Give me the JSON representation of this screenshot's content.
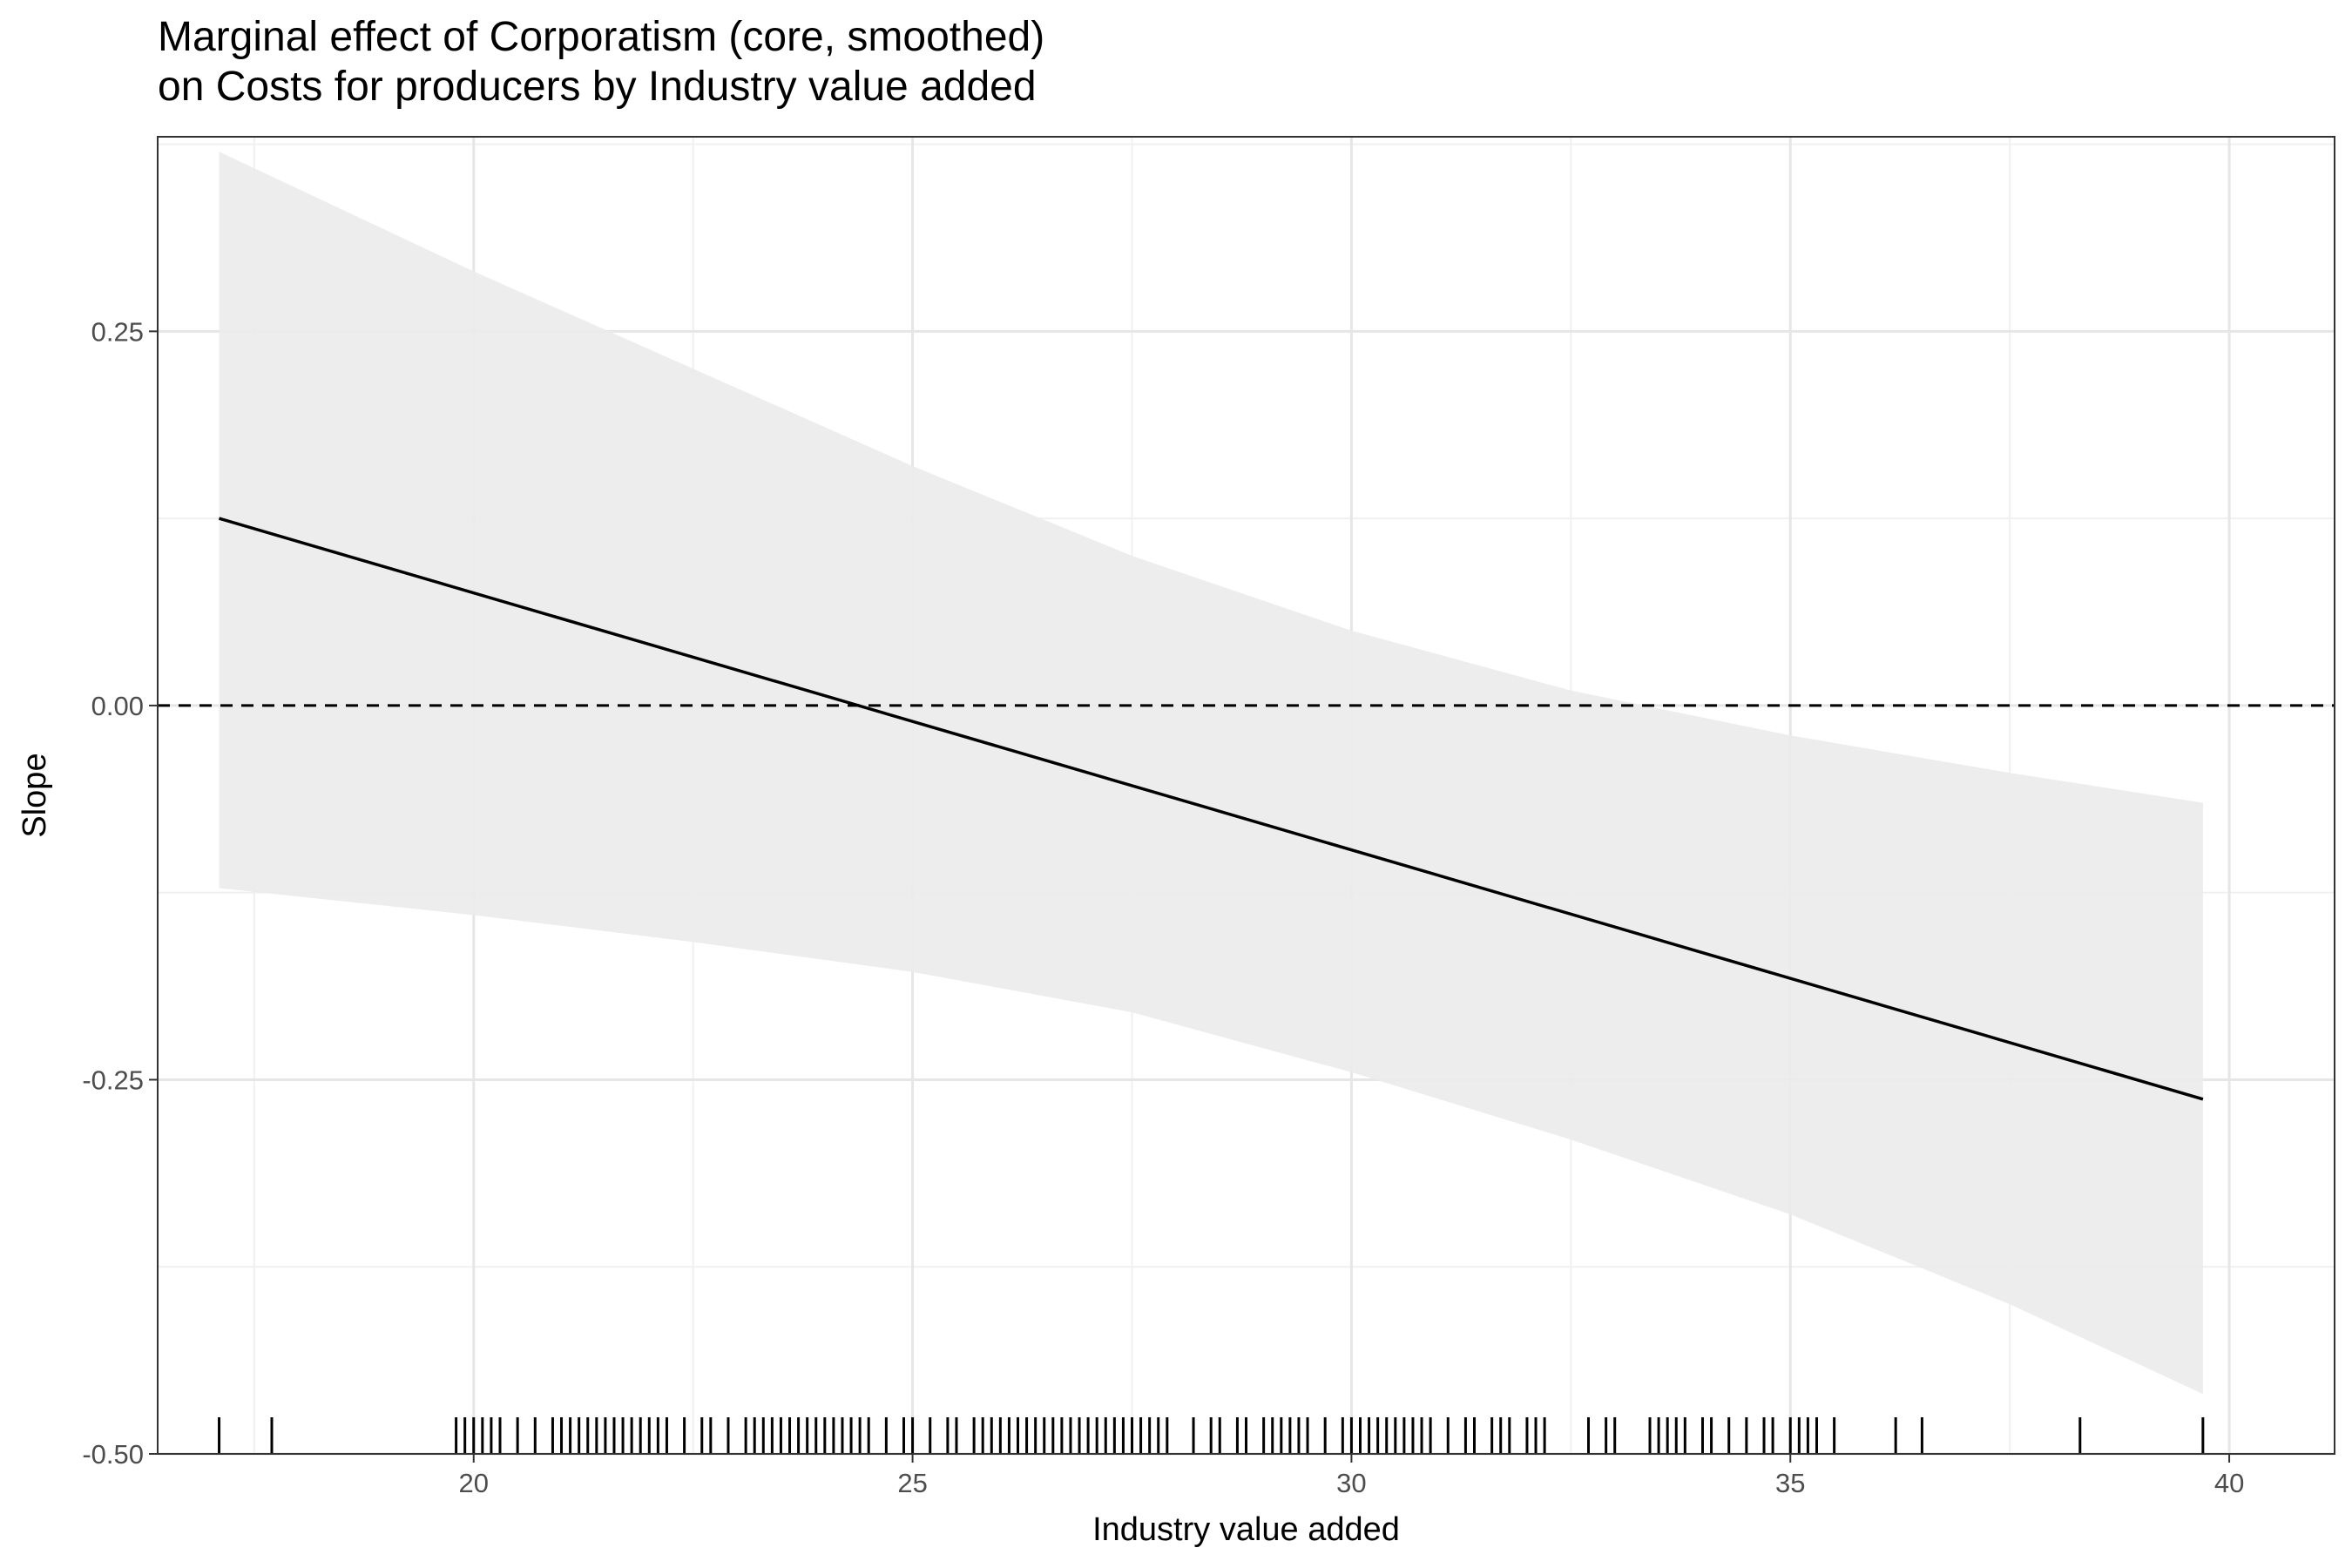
{
  "chart_data": {
    "type": "line",
    "title": [
      "Marginal effect of Corporatism (core, smoothed)",
      "on Costs for producers by Industry value added"
    ],
    "xlabel": "Industry value added",
    "ylabel": "Slope",
    "xlim": [
      16.4,
      41.2
    ],
    "ylim": [
      -0.5,
      0.38
    ],
    "x_ticks": [
      20,
      25,
      30,
      35,
      40
    ],
    "x_tick_labels": [
      "20",
      "25",
      "30",
      "35",
      "40"
    ],
    "y_ticks": [
      -0.5,
      -0.25,
      0.0,
      0.25
    ],
    "y_tick_labels": [
      "-0.50",
      "-0.25",
      "0.00",
      "0.25"
    ],
    "grid": true,
    "reference_line": {
      "y": 0,
      "style": "dashed"
    },
    "series": [
      {
        "x": [
          17.1,
          39.7
        ],
        "values": [
          0.125,
          -0.263
        ]
      }
    ],
    "confidence_band": {
      "x": [
        17.1,
        20,
        22.5,
        25,
        27.5,
        30,
        32.5,
        35,
        37.5,
        39.7
      ],
      "upper": [
        0.37,
        0.29,
        0.225,
        0.16,
        0.1,
        0.05,
        0.01,
        -0.02,
        -0.045,
        -0.065
      ],
      "lower": [
        -0.122,
        -0.14,
        -0.158,
        -0.178,
        -0.205,
        -0.245,
        -0.29,
        -0.34,
        -0.4,
        -0.46
      ]
    },
    "rug": [
      17.1,
      17.7,
      19.8,
      19.9,
      20.0,
      20.1,
      20.2,
      20.3,
      20.5,
      20.7,
      20.9,
      21.0,
      21.1,
      21.2,
      21.3,
      21.4,
      21.5,
      21.6,
      21.7,
      21.8,
      21.9,
      22.0,
      22.1,
      22.2,
      22.4,
      22.6,
      22.7,
      22.9,
      23.1,
      23.2,
      23.3,
      23.4,
      23.5,
      23.6,
      23.7,
      23.8,
      23.9,
      24.0,
      24.1,
      24.2,
      24.3,
      24.4,
      24.5,
      24.7,
      24.9,
      25.0,
      25.2,
      25.4,
      25.5,
      25.7,
      25.8,
      25.9,
      26.0,
      26.1,
      26.2,
      26.3,
      26.4,
      26.5,
      26.6,
      26.7,
      26.8,
      26.9,
      27.0,
      27.1,
      27.2,
      27.3,
      27.4,
      27.5,
      27.6,
      27.7,
      27.8,
      27.9,
      28.2,
      28.4,
      28.5,
      28.7,
      28.8,
      29.0,
      29.1,
      29.2,
      29.3,
      29.4,
      29.5,
      29.7,
      29.9,
      30.0,
      30.1,
      30.2,
      30.3,
      30.4,
      30.5,
      30.6,
      30.7,
      30.8,
      30.9,
      31.1,
      31.3,
      31.4,
      31.6,
      31.7,
      31.8,
      32.0,
      32.1,
      32.2,
      32.7,
      32.9,
      33.0,
      33.4,
      33.5,
      33.6,
      33.7,
      33.8,
      34.0,
      34.1,
      34.3,
      34.5,
      34.7,
      34.8,
      35.0,
      35.1,
      35.2,
      35.3,
      35.5,
      36.2,
      36.5,
      38.3,
      39.7
    ]
  }
}
